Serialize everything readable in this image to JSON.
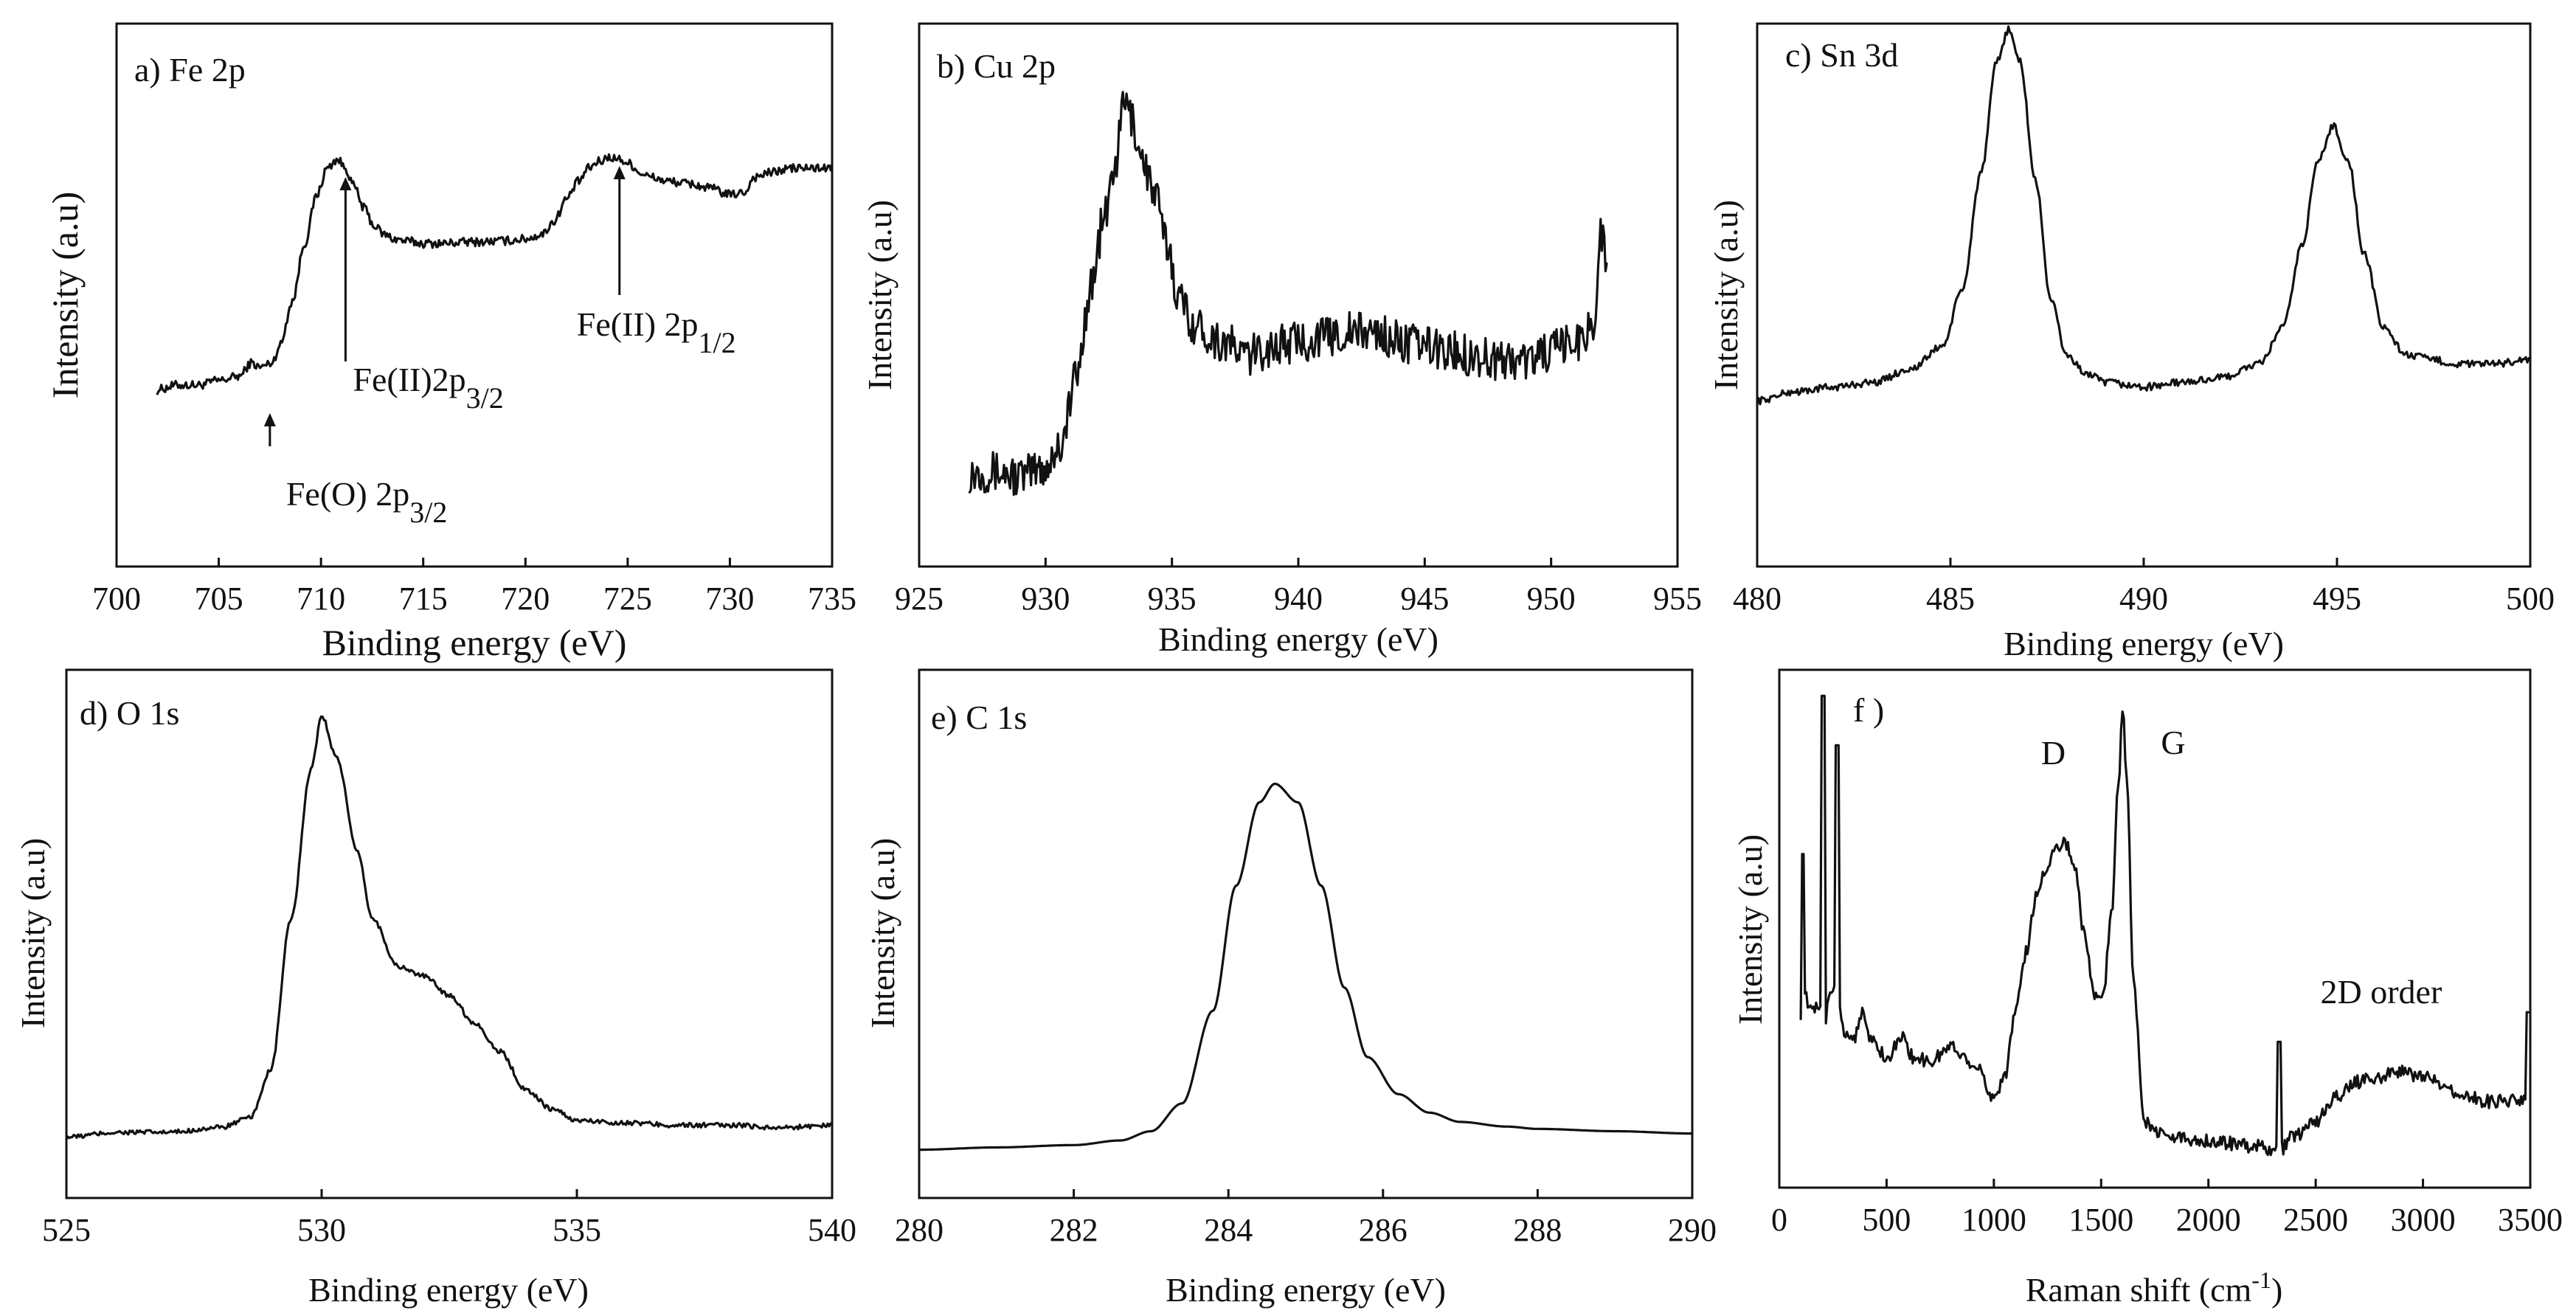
{
  "chart_data": [
    {
      "panel": "a",
      "type": "line",
      "title": "a) Fe 2p",
      "xlabel": "Binding energy (eV)",
      "ylabel": "Intensity (a.u)",
      "xlim": [
        700,
        735
      ],
      "ylim": [
        0,
        100
      ],
      "xticks": [
        700,
        705,
        710,
        715,
        720,
        725,
        730,
        735
      ],
      "series": [
        {
          "name": "Fe 2p",
          "x": [
            702,
            703,
            704,
            705,
            706,
            706.6,
            707,
            707.6,
            708,
            708.6,
            709.2,
            709.8,
            710.3,
            710.8,
            711.2,
            711.6,
            712.1,
            712.6,
            713.1,
            713.6,
            714.2,
            715,
            716,
            717,
            718,
            719,
            720,
            720.8,
            721.4,
            722,
            722.6,
            723.1,
            723.6,
            724.1,
            724.6,
            725.1,
            725.6,
            726.1,
            727,
            728,
            729,
            730,
            730.7,
            731.2,
            732,
            733,
            734,
            735
          ],
          "y": [
            22,
            23,
            23,
            24,
            25,
            28,
            27,
            28,
            32,
            42,
            55,
            66,
            72,
            74,
            72,
            68,
            63,
            59,
            57,
            56,
            55.5,
            55,
            55,
            55.3,
            55.4,
            55.6,
            56,
            57,
            60,
            65,
            69,
            72,
            73.5,
            74.5,
            74,
            73,
            71,
            70,
            69,
            68.5,
            67.5,
            66,
            66.5,
            70,
            71,
            72,
            72,
            72
          ],
          "noise": 1.0
        }
      ],
      "annotations": [
        {
          "label": "Fe(II)2p",
          "sub": "3/2",
          "x": 711.2
        },
        {
          "label": "Fe(II) 2p",
          "sub": "1/2",
          "x": 724.6
        },
        {
          "label": "Fe(O) 2p",
          "sub": "3/2",
          "x": 707.5
        }
      ]
    },
    {
      "panel": "b",
      "type": "line",
      "title": "b) Cu 2p",
      "xlabel": "Binding energy (eV)",
      "ylabel": "Intensity (a.u)",
      "xlim": [
        925,
        955
      ],
      "ylim": [
        0,
        100
      ],
      "xticks": [
        925,
        930,
        935,
        940,
        945,
        950,
        955
      ],
      "series": [
        {
          "name": "Cu 2p",
          "x": [
            927,
            928,
            929,
            930,
            930.6,
            931.2,
            931.8,
            932.3,
            932.8,
            933.1,
            933.4,
            933.8,
            934.3,
            934.8,
            935.3,
            936,
            937,
            938,
            939,
            940,
            941,
            942,
            943,
            944,
            945,
            946,
            947,
            948,
            949,
            950,
            951,
            951.7,
            952,
            952.2
          ],
          "y": [
            8,
            8,
            7,
            9,
            14,
            28,
            48,
            62,
            75,
            88,
            84,
            76,
            68,
            57,
            45,
            39,
            36,
            33,
            35,
            36,
            37,
            38,
            38,
            36,
            35,
            34,
            33,
            32,
            32,
            34,
            36,
            40,
            60,
            50
          ],
          "noise": 4.5
        }
      ],
      "annotations": []
    },
    {
      "panel": "c",
      "type": "line",
      "title": "c) Sn 3d",
      "xlabel": "Binding energy (eV)",
      "ylabel": "Intensity (a.u)",
      "xlim": [
        480,
        500
      ],
      "ylim": [
        0,
        100
      ],
      "xticks": [
        480,
        485,
        490,
        495,
        500
      ],
      "series": [
        {
          "name": "Sn 3d",
          "x": [
            480,
            481,
            482,
            483,
            484,
            484.8,
            485.3,
            485.8,
            486.2,
            486.5,
            486.8,
            487.2,
            487.6,
            488,
            488.5,
            489,
            490,
            491,
            492,
            493,
            493.6,
            494.1,
            494.5,
            494.9,
            495.3,
            495.7,
            496.2,
            496.8,
            497.5,
            498,
            499,
            500
          ],
          "y": [
            18,
            20,
            21,
            22,
            25,
            30,
            42,
            68,
            92,
            99,
            92,
            66,
            40,
            28,
            24,
            22,
            21,
            22,
            23,
            26,
            34,
            52,
            70,
            78,
            70,
            50,
            34,
            28,
            27,
            26,
            26,
            27
          ],
          "noise": 0.8
        }
      ],
      "annotations": []
    },
    {
      "panel": "d",
      "type": "line",
      "title": "d) O 1s",
      "xlabel": "Binding energy (eV)",
      "ylabel": "Intensity (a.u)",
      "xlim": [
        525,
        540
      ],
      "ylim": [
        0,
        100
      ],
      "xticks": [
        525,
        530,
        535,
        540
      ],
      "series": [
        {
          "name": "O 1s",
          "x": [
            525,
            526,
            527,
            528,
            528.6,
            529,
            529.4,
            529.8,
            530,
            530.3,
            530.7,
            531,
            531.5,
            532,
            532.5,
            533,
            533.5,
            534,
            534.5,
            535,
            536,
            537,
            538,
            539,
            540
          ],
          "y": [
            6,
            7,
            7,
            8,
            10,
            20,
            52,
            84,
            95,
            86,
            66,
            52,
            42,
            40,
            36,
            30,
            24,
            16,
            12,
            9.5,
            9,
            8.5,
            8.5,
            8,
            8.5
          ],
          "noise": 0.5
        }
      ],
      "annotations": []
    },
    {
      "panel": "e",
      "type": "line",
      "title": "e) C 1s",
      "xlabel": "Binding energy (eV)",
      "ylabel": "Intensity (a.u)",
      "xlim": [
        280,
        290
      ],
      "ylim": [
        0,
        100
      ],
      "xticks": [
        280,
        282,
        284,
        286,
        288,
        290
      ],
      "series": [
        {
          "name": "C 1s",
          "x": [
            280,
            281,
            282,
            282.6,
            283,
            283.4,
            283.8,
            284.1,
            284.4,
            284.6,
            284.9,
            285.2,
            285.5,
            285.8,
            286.2,
            286.6,
            287,
            287.6,
            288,
            289,
            290
          ],
          "y": [
            5,
            5.5,
            6,
            7,
            9,
            15,
            35,
            62,
            80,
            84,
            80,
            62,
            40,
            25,
            17,
            13,
            11,
            10,
            9.5,
            9,
            8.5
          ],
          "noise": 0
        }
      ],
      "annotations": []
    },
    {
      "panel": "f",
      "type": "line",
      "title": "f )",
      "xlabel": "Raman shift (cm-1)",
      "ylabel": "Intensity (a.u)",
      "xlim": [
        0,
        3500
      ],
      "ylim": [
        0,
        100
      ],
      "xticks": [
        0,
        500,
        1000,
        1500,
        2000,
        2500,
        3000,
        3500
      ],
      "series": [
        {
          "name": "Raman",
          "x": [
            100,
            120,
            140,
            180,
            210,
            240,
            270,
            300,
            350,
            380,
            420,
            500,
            580,
            620,
            700,
            800,
            900,
            1000,
            1050,
            1100,
            1150,
            1200,
            1250,
            1300,
            1340,
            1380,
            1420,
            1470,
            1510,
            1550,
            1580,
            1600,
            1620,
            1650,
            1700,
            1800,
            2000,
            2200,
            2330,
            2400,
            2500,
            2600,
            2700,
            2800,
            2900,
            3000,
            3100,
            3200,
            3300,
            3400,
            3490
          ],
          "y": [
            34,
            38,
            34,
            35,
            32,
            38,
            40,
            30,
            29,
            34,
            29,
            25,
            29,
            25,
            24,
            27,
            24,
            17,
            21,
            34,
            46,
            58,
            64,
            68,
            68,
            63,
            50,
            37,
            38,
            55,
            80,
            95,
            82,
            40,
            12,
            9,
            8,
            7,
            6,
            9,
            12,
            17,
            20,
            21,
            22,
            21,
            19,
            17,
            16,
            16,
            16
          ],
          "noise": 1.4
        }
      ],
      "spikes": [
        {
          "x": 110,
          "y": 66
        },
        {
          "x": 205,
          "y": 98
        },
        {
          "x": 270,
          "y": 88
        },
        {
          "x": 2330,
          "y": 28
        },
        {
          "x": 3490,
          "y": 34
        }
      ],
      "annotations": [
        {
          "label": "D",
          "x": 1330
        },
        {
          "label": "G",
          "x": 1600
        },
        {
          "label": "2D order",
          "x": 2900
        }
      ]
    }
  ]
}
